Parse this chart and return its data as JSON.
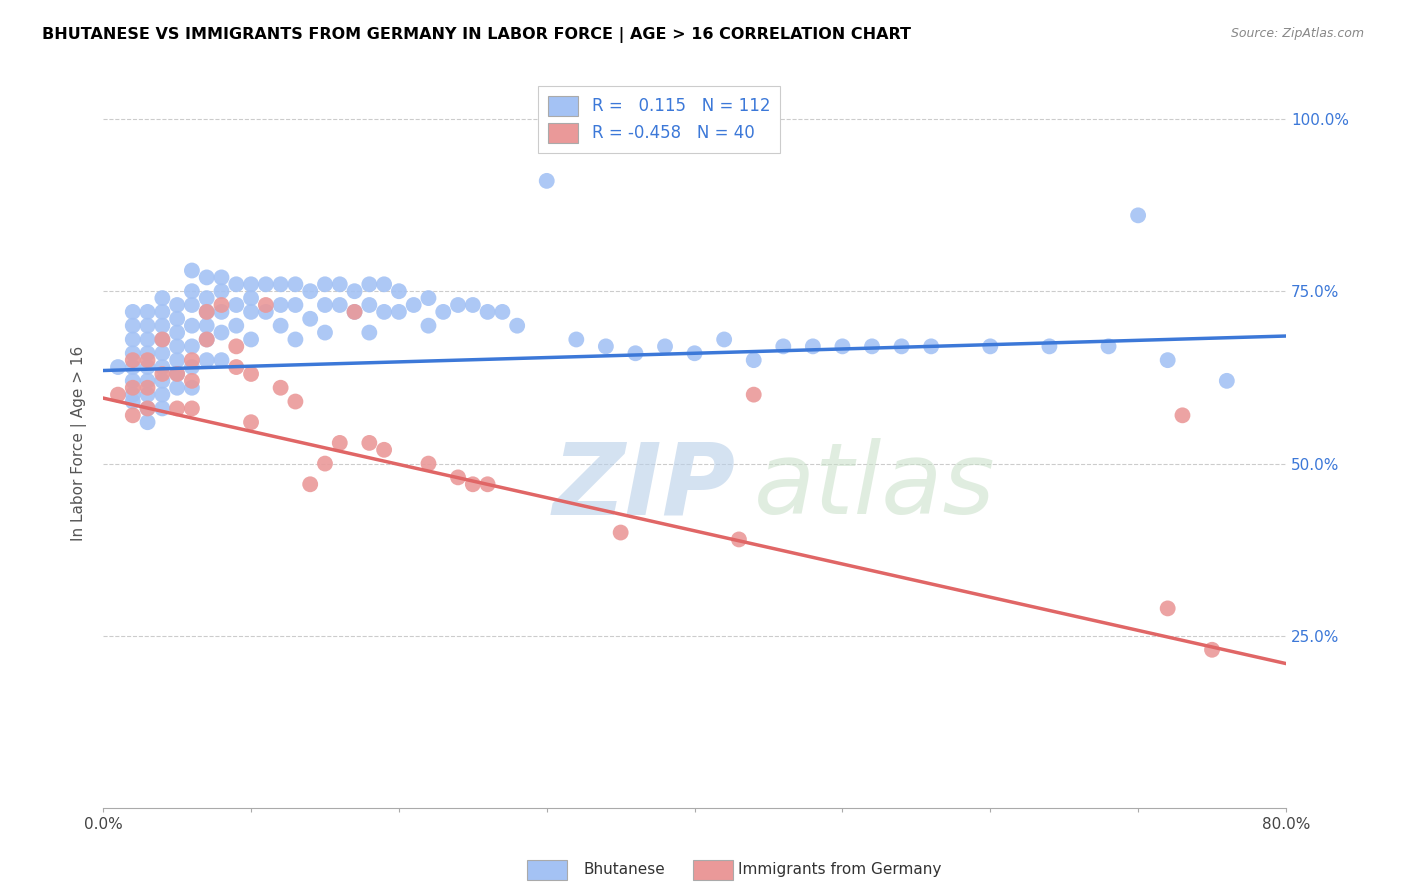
{
  "title": "BHUTANESE VS IMMIGRANTS FROM GERMANY IN LABOR FORCE | AGE > 16 CORRELATION CHART",
  "source": "Source: ZipAtlas.com",
  "ylabel": "In Labor Force | Age > 16",
  "xlim": [
    0.0,
    0.8
  ],
  "ylim": [
    0.0,
    1.06
  ],
  "blue_R": 0.115,
  "blue_N": 112,
  "pink_R": -0.458,
  "pink_N": 40,
  "blue_color": "#a4c2f4",
  "pink_color": "#ea9999",
  "blue_line_color": "#3c78d8",
  "pink_line_color": "#e06666",
  "legend_label_blue": "Bhutanese",
  "legend_label_pink": "Immigrants from Germany",
  "blue_line_x": [
    0.0,
    0.8
  ],
  "blue_line_y": [
    0.635,
    0.685
  ],
  "pink_line_x": [
    0.0,
    0.8
  ],
  "pink_line_y": [
    0.595,
    0.21
  ],
  "blue_scatter_x": [
    0.01,
    0.02,
    0.02,
    0.02,
    0.02,
    0.02,
    0.02,
    0.02,
    0.02,
    0.03,
    0.03,
    0.03,
    0.03,
    0.03,
    0.03,
    0.03,
    0.03,
    0.03,
    0.04,
    0.04,
    0.04,
    0.04,
    0.04,
    0.04,
    0.04,
    0.04,
    0.04,
    0.05,
    0.05,
    0.05,
    0.05,
    0.05,
    0.05,
    0.05,
    0.06,
    0.06,
    0.06,
    0.06,
    0.06,
    0.06,
    0.06,
    0.07,
    0.07,
    0.07,
    0.07,
    0.07,
    0.07,
    0.08,
    0.08,
    0.08,
    0.08,
    0.08,
    0.09,
    0.09,
    0.09,
    0.1,
    0.1,
    0.1,
    0.1,
    0.11,
    0.11,
    0.12,
    0.12,
    0.12,
    0.13,
    0.13,
    0.13,
    0.14,
    0.14,
    0.15,
    0.15,
    0.15,
    0.16,
    0.16,
    0.17,
    0.17,
    0.18,
    0.18,
    0.18,
    0.19,
    0.19,
    0.2,
    0.2,
    0.21,
    0.22,
    0.22,
    0.23,
    0.24,
    0.25,
    0.26,
    0.27,
    0.28,
    0.3,
    0.32,
    0.34,
    0.36,
    0.38,
    0.4,
    0.42,
    0.44,
    0.46,
    0.48,
    0.5,
    0.52,
    0.54,
    0.56,
    0.6,
    0.64,
    0.68,
    0.7,
    0.72,
    0.76
  ],
  "blue_scatter_y": [
    0.64,
    0.68,
    0.72,
    0.7,
    0.66,
    0.64,
    0.62,
    0.6,
    0.59,
    0.72,
    0.7,
    0.68,
    0.66,
    0.64,
    0.62,
    0.6,
    0.58,
    0.56,
    0.74,
    0.72,
    0.7,
    0.68,
    0.66,
    0.64,
    0.62,
    0.6,
    0.58,
    0.73,
    0.71,
    0.69,
    0.67,
    0.65,
    0.63,
    0.61,
    0.78,
    0.75,
    0.73,
    0.7,
    0.67,
    0.64,
    0.61,
    0.77,
    0.74,
    0.72,
    0.7,
    0.68,
    0.65,
    0.77,
    0.75,
    0.72,
    0.69,
    0.65,
    0.76,
    0.73,
    0.7,
    0.76,
    0.74,
    0.72,
    0.68,
    0.76,
    0.72,
    0.76,
    0.73,
    0.7,
    0.76,
    0.73,
    0.68,
    0.75,
    0.71,
    0.76,
    0.73,
    0.69,
    0.76,
    0.73,
    0.75,
    0.72,
    0.76,
    0.73,
    0.69,
    0.76,
    0.72,
    0.75,
    0.72,
    0.73,
    0.74,
    0.7,
    0.72,
    0.73,
    0.73,
    0.72,
    0.72,
    0.7,
    0.91,
    0.68,
    0.67,
    0.66,
    0.67,
    0.66,
    0.68,
    0.65,
    0.67,
    0.67,
    0.67,
    0.67,
    0.67,
    0.67,
    0.67,
    0.67,
    0.67,
    0.86,
    0.65,
    0.62
  ],
  "pink_scatter_x": [
    0.01,
    0.02,
    0.02,
    0.02,
    0.03,
    0.03,
    0.03,
    0.04,
    0.04,
    0.05,
    0.05,
    0.06,
    0.06,
    0.06,
    0.07,
    0.07,
    0.08,
    0.09,
    0.09,
    0.1,
    0.1,
    0.11,
    0.12,
    0.13,
    0.14,
    0.15,
    0.16,
    0.17,
    0.18,
    0.19,
    0.22,
    0.24,
    0.25,
    0.26,
    0.35,
    0.43,
    0.44,
    0.72,
    0.73,
    0.75
  ],
  "pink_scatter_y": [
    0.6,
    0.65,
    0.61,
    0.57,
    0.65,
    0.61,
    0.58,
    0.68,
    0.63,
    0.63,
    0.58,
    0.65,
    0.62,
    0.58,
    0.72,
    0.68,
    0.73,
    0.67,
    0.64,
    0.63,
    0.56,
    0.73,
    0.61,
    0.59,
    0.47,
    0.5,
    0.53,
    0.72,
    0.53,
    0.52,
    0.5,
    0.48,
    0.47,
    0.47,
    0.4,
    0.39,
    0.6,
    0.29,
    0.57,
    0.23
  ]
}
